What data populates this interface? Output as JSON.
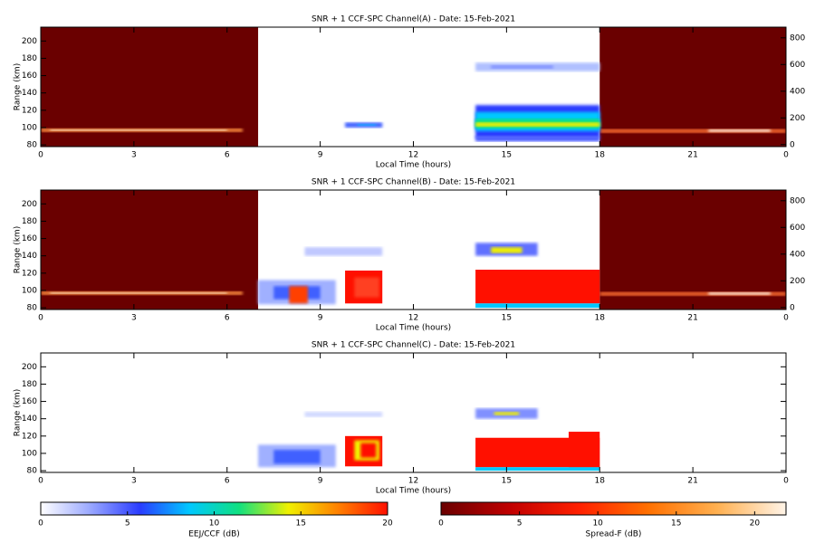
{
  "chart_data": [
    {
      "type": "heatmap",
      "title": "SNR + 1 CCF-SPC Channel(A) - Date: 15-Feb-2021",
      "xlabel": "Local Time (hours)",
      "ylabel": "Range (km)",
      "xlim": [
        0,
        24
      ],
      "xticks": [
        0,
        3,
        6,
        9,
        12,
        15,
        18,
        21,
        {
          "value": 24,
          "label": "0"
        }
      ],
      "ylim": [
        78,
        216
      ],
      "yticks": [
        80,
        100,
        120,
        140,
        160,
        180,
        200
      ],
      "y2lim": [
        -15,
        880
      ],
      "y2ticks": [
        0,
        200,
        400,
        600,
        800
      ]
    },
    {
      "type": "heatmap",
      "title": "SNR + 1 CCF-SPC Channel(B) - Date: 15-Feb-2021",
      "xlabel": "Local Time (hours)",
      "ylabel": "Range (km)",
      "xlim": [
        0,
        24
      ],
      "xticks": [
        0,
        3,
        6,
        9,
        12,
        15,
        18,
        21,
        {
          "value": 24,
          "label": "0"
        }
      ],
      "ylim": [
        78,
        216
      ],
      "yticks": [
        80,
        100,
        120,
        140,
        160,
        180,
        200
      ],
      "y2lim": [
        -15,
        880
      ],
      "y2ticks": [
        0,
        200,
        400,
        600,
        800
      ]
    },
    {
      "type": "heatmap",
      "title": "SNR + 1 CCF-SPC Channel(C) - Date: 15-Feb-2021",
      "xlabel": "Local Time (hours)",
      "ylabel": "Range (km)",
      "xlim": [
        0,
        24
      ],
      "xticks": [
        0,
        3,
        6,
        9,
        12,
        15,
        18,
        21,
        {
          "value": 24,
          "label": "0"
        }
      ],
      "ylim": [
        78,
        216
      ],
      "yticks": [
        80,
        100,
        120,
        140,
        160,
        180,
        200
      ]
    }
  ],
  "colorbars": [
    {
      "label": "EEJ/CCF (dB)",
      "lim": [
        0,
        20
      ],
      "ticks": [
        0,
        5,
        10,
        15,
        20
      ],
      "colors": [
        "#ffffff",
        "#9aa8ff",
        "#2a3cff",
        "#00c8ff",
        "#10e080",
        "#f0f000",
        "#ff8000",
        "#ff1000"
      ]
    },
    {
      "label": "Spread-F (dB)",
      "lim": [
        0,
        22
      ],
      "ticks": [
        0,
        5,
        10,
        15,
        20
      ],
      "colors": [
        "#6a0000",
        "#c00000",
        "#ff2000",
        "#ff7000",
        "#ffb050",
        "#fff4e8"
      ]
    }
  ]
}
